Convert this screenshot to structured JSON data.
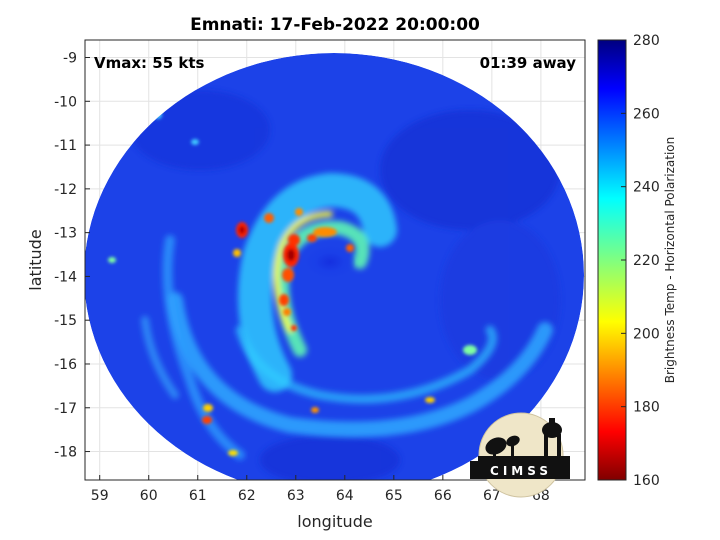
{
  "title": "Emnati: 17-Feb-2022 20:00:00",
  "annotations": {
    "vmax": "Vmax: 55 kts",
    "away": "01:39 away"
  },
  "axes": {
    "xlabel": "longitude",
    "ylabel": "latitude",
    "xticks": [
      "59",
      "60",
      "61",
      "62",
      "63",
      "64",
      "65",
      "66",
      "67",
      "68"
    ],
    "yticks": [
      "-9",
      "-10",
      "-11",
      "-12",
      "-13",
      "-14",
      "-15",
      "-16",
      "-17",
      "-18"
    ],
    "xlim": [
      58.7,
      68.9
    ],
    "ylim": [
      -18.65,
      -8.6
    ],
    "grid": true
  },
  "colorbar": {
    "label": "Brightness Temp - Horizontal Polarization",
    "ticks": [
      "280",
      "260",
      "240",
      "220",
      "200",
      "180",
      "160"
    ],
    "range": [
      160,
      280
    ],
    "colormap": "jet"
  },
  "logo": {
    "text": "CIMSS"
  },
  "chart_data": {
    "type": "heatmap",
    "title": "Emnati: 17-Feb-2022 20:00:00",
    "xlabel": "longitude",
    "ylabel": "latitude",
    "xlim": [
      58.7,
      68.9
    ],
    "ylim": [
      -18.65,
      -8.6
    ],
    "value_range": [
      160,
      280
    ],
    "background_value": 262,
    "storm_center": {
      "lon": 64.6,
      "lat": -13.75
    },
    "swath": {
      "center_lon": 63.85,
      "center_lat": -13.4,
      "radius_deg": 5.0
    },
    "features": [
      {
        "name": "eye",
        "lon": 64.6,
        "lat": -13.75,
        "value": 255
      },
      {
        "name": "eyewall",
        "lon": 63.3,
        "lat": -13.4,
        "value": 175
      },
      {
        "name": "inner rainband",
        "lon": 62.8,
        "lat": -14.8,
        "value": 190
      },
      {
        "name": "outer rainband",
        "lon": 61.5,
        "lat": -17.3,
        "value": 200
      },
      {
        "name": "southern band",
        "lon": 65.8,
        "lat": -16.9,
        "value": 220
      }
    ]
  }
}
